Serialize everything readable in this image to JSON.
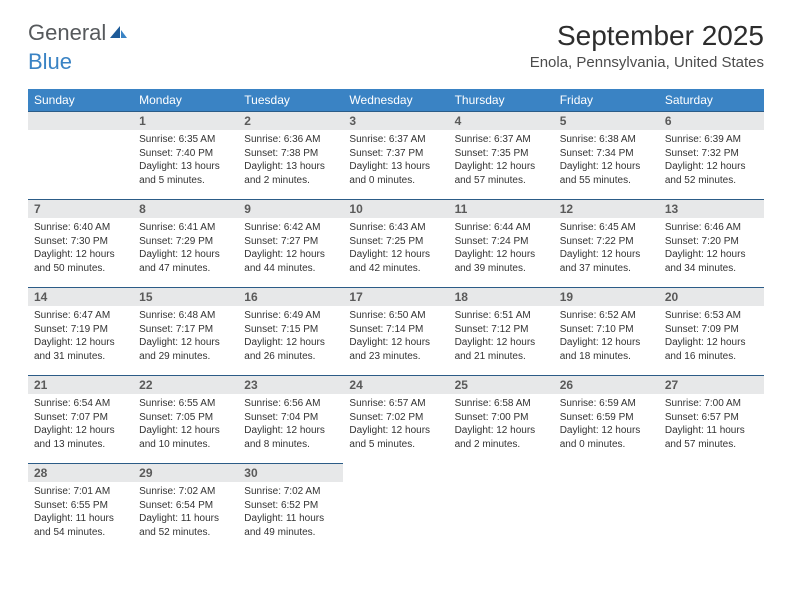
{
  "logo": {
    "general": "General",
    "blue": "Blue"
  },
  "title": "September 2025",
  "location": "Enola, Pennsylvania, United States",
  "colors": {
    "header_bg": "#3a83c4",
    "header_text": "#ffffff",
    "daynum_bg": "#e7e8e9",
    "daynum_border": "#2c5c87",
    "body_text": "#333333",
    "logo_gray": "#56595c",
    "logo_blue": "#3a83c4"
  },
  "weekdays": [
    "Sunday",
    "Monday",
    "Tuesday",
    "Wednesday",
    "Thursday",
    "Friday",
    "Saturday"
  ],
  "weeks": [
    [
      null,
      {
        "n": "1",
        "sr": "Sunrise: 6:35 AM",
        "ss": "Sunset: 7:40 PM",
        "dl": "Daylight: 13 hours and 5 minutes."
      },
      {
        "n": "2",
        "sr": "Sunrise: 6:36 AM",
        "ss": "Sunset: 7:38 PM",
        "dl": "Daylight: 13 hours and 2 minutes."
      },
      {
        "n": "3",
        "sr": "Sunrise: 6:37 AM",
        "ss": "Sunset: 7:37 PM",
        "dl": "Daylight: 13 hours and 0 minutes."
      },
      {
        "n": "4",
        "sr": "Sunrise: 6:37 AM",
        "ss": "Sunset: 7:35 PM",
        "dl": "Daylight: 12 hours and 57 minutes."
      },
      {
        "n": "5",
        "sr": "Sunrise: 6:38 AM",
        "ss": "Sunset: 7:34 PM",
        "dl": "Daylight: 12 hours and 55 minutes."
      },
      {
        "n": "6",
        "sr": "Sunrise: 6:39 AM",
        "ss": "Sunset: 7:32 PM",
        "dl": "Daylight: 12 hours and 52 minutes."
      }
    ],
    [
      {
        "n": "7",
        "sr": "Sunrise: 6:40 AM",
        "ss": "Sunset: 7:30 PM",
        "dl": "Daylight: 12 hours and 50 minutes."
      },
      {
        "n": "8",
        "sr": "Sunrise: 6:41 AM",
        "ss": "Sunset: 7:29 PM",
        "dl": "Daylight: 12 hours and 47 minutes."
      },
      {
        "n": "9",
        "sr": "Sunrise: 6:42 AM",
        "ss": "Sunset: 7:27 PM",
        "dl": "Daylight: 12 hours and 44 minutes."
      },
      {
        "n": "10",
        "sr": "Sunrise: 6:43 AM",
        "ss": "Sunset: 7:25 PM",
        "dl": "Daylight: 12 hours and 42 minutes."
      },
      {
        "n": "11",
        "sr": "Sunrise: 6:44 AM",
        "ss": "Sunset: 7:24 PM",
        "dl": "Daylight: 12 hours and 39 minutes."
      },
      {
        "n": "12",
        "sr": "Sunrise: 6:45 AM",
        "ss": "Sunset: 7:22 PM",
        "dl": "Daylight: 12 hours and 37 minutes."
      },
      {
        "n": "13",
        "sr": "Sunrise: 6:46 AM",
        "ss": "Sunset: 7:20 PM",
        "dl": "Daylight: 12 hours and 34 minutes."
      }
    ],
    [
      {
        "n": "14",
        "sr": "Sunrise: 6:47 AM",
        "ss": "Sunset: 7:19 PM",
        "dl": "Daylight: 12 hours and 31 minutes."
      },
      {
        "n": "15",
        "sr": "Sunrise: 6:48 AM",
        "ss": "Sunset: 7:17 PM",
        "dl": "Daylight: 12 hours and 29 minutes."
      },
      {
        "n": "16",
        "sr": "Sunrise: 6:49 AM",
        "ss": "Sunset: 7:15 PM",
        "dl": "Daylight: 12 hours and 26 minutes."
      },
      {
        "n": "17",
        "sr": "Sunrise: 6:50 AM",
        "ss": "Sunset: 7:14 PM",
        "dl": "Daylight: 12 hours and 23 minutes."
      },
      {
        "n": "18",
        "sr": "Sunrise: 6:51 AM",
        "ss": "Sunset: 7:12 PM",
        "dl": "Daylight: 12 hours and 21 minutes."
      },
      {
        "n": "19",
        "sr": "Sunrise: 6:52 AM",
        "ss": "Sunset: 7:10 PM",
        "dl": "Daylight: 12 hours and 18 minutes."
      },
      {
        "n": "20",
        "sr": "Sunrise: 6:53 AM",
        "ss": "Sunset: 7:09 PM",
        "dl": "Daylight: 12 hours and 16 minutes."
      }
    ],
    [
      {
        "n": "21",
        "sr": "Sunrise: 6:54 AM",
        "ss": "Sunset: 7:07 PM",
        "dl": "Daylight: 12 hours and 13 minutes."
      },
      {
        "n": "22",
        "sr": "Sunrise: 6:55 AM",
        "ss": "Sunset: 7:05 PM",
        "dl": "Daylight: 12 hours and 10 minutes."
      },
      {
        "n": "23",
        "sr": "Sunrise: 6:56 AM",
        "ss": "Sunset: 7:04 PM",
        "dl": "Daylight: 12 hours and 8 minutes."
      },
      {
        "n": "24",
        "sr": "Sunrise: 6:57 AM",
        "ss": "Sunset: 7:02 PM",
        "dl": "Daylight: 12 hours and 5 minutes."
      },
      {
        "n": "25",
        "sr": "Sunrise: 6:58 AM",
        "ss": "Sunset: 7:00 PM",
        "dl": "Daylight: 12 hours and 2 minutes."
      },
      {
        "n": "26",
        "sr": "Sunrise: 6:59 AM",
        "ss": "Sunset: 6:59 PM",
        "dl": "Daylight: 12 hours and 0 minutes."
      },
      {
        "n": "27",
        "sr": "Sunrise: 7:00 AM",
        "ss": "Sunset: 6:57 PM",
        "dl": "Daylight: 11 hours and 57 minutes."
      }
    ],
    [
      {
        "n": "28",
        "sr": "Sunrise: 7:01 AM",
        "ss": "Sunset: 6:55 PM",
        "dl": "Daylight: 11 hours and 54 minutes."
      },
      {
        "n": "29",
        "sr": "Sunrise: 7:02 AM",
        "ss": "Sunset: 6:54 PM",
        "dl": "Daylight: 11 hours and 52 minutes."
      },
      {
        "n": "30",
        "sr": "Sunrise: 7:02 AM",
        "ss": "Sunset: 6:52 PM",
        "dl": "Daylight: 11 hours and 49 minutes."
      },
      null,
      null,
      null,
      null
    ]
  ]
}
